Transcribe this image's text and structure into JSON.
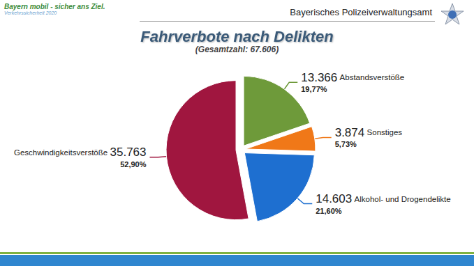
{
  "header": {
    "logo_title": "Bayern mobil - sicher ans Ziel.",
    "logo_subtitle": "Verkehrssicherheit 2020",
    "agency": "Bayerisches Polizeiverwaltungsamt"
  },
  "chart_data": {
    "type": "pie",
    "title": "Fahrverbote nach Delikten",
    "subtitle": "(Gesamtzahl: 67.606)",
    "categories": [
      "Abstandsverstöße",
      "Sonstiges",
      "Alkohol- und Drogendelikte",
      "Geschwindigkeitsverstöße"
    ],
    "values": [
      13366,
      3874,
      14603,
      35763
    ],
    "value_labels": [
      "13.366",
      "3.874",
      "14.603",
      "35.763"
    ],
    "percentages": [
      19.77,
      5.73,
      21.6,
      52.9
    ],
    "percentage_labels": [
      "19,77%",
      "5,73%",
      "21,60%",
      "52,90%"
    ],
    "colors": [
      "#6e9a3a",
      "#f07818",
      "#1e6fd0",
      "#a0163f"
    ],
    "data_labels": true
  }
}
